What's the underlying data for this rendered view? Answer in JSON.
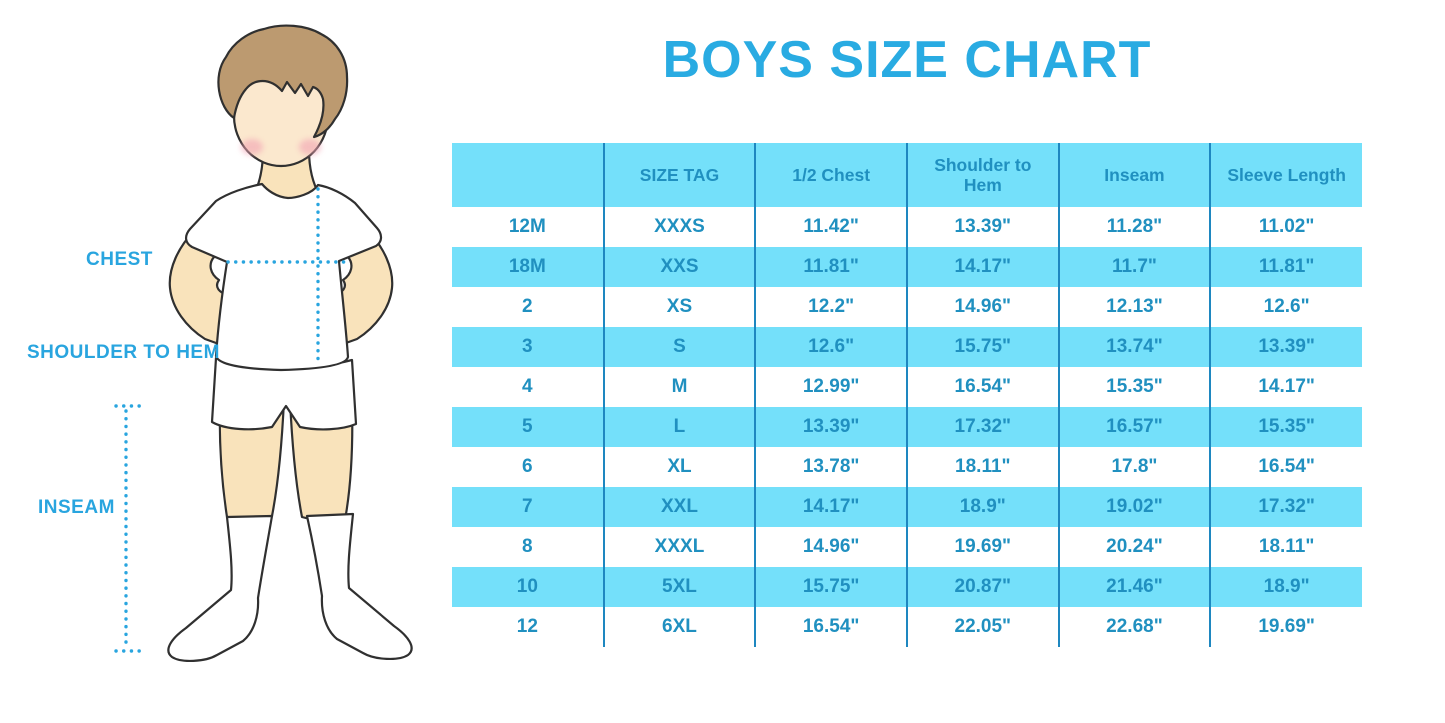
{
  "page": {
    "title": "BOYS SIZE CHART"
  },
  "figure": {
    "description": "cartoon boy in white t-shirt, shorts and knee socks with dotted measurement guides",
    "labels": {
      "chest": "CHEST",
      "shoulder_to_hem": "SHOULDER TO HEM",
      "inseam": "INSEAM"
    }
  },
  "chart_data": {
    "type": "table",
    "title": "BOYS SIZE CHART",
    "columns": [
      "",
      "SIZE TAG",
      "1/2 Chest",
      "Shoulder to Hem",
      "Inseam",
      "Sleeve Length"
    ],
    "rows": [
      [
        "12M",
        "XXXS",
        "11.42\"",
        "13.39\"",
        "11.28\"",
        "11.02\""
      ],
      [
        "18M",
        "XXS",
        "11.81\"",
        "14.17\"",
        "11.7\"",
        "11.81\""
      ],
      [
        "2",
        "XS",
        "12.2\"",
        "14.96\"",
        "12.13\"",
        "12.6\""
      ],
      [
        "3",
        "S",
        "12.6\"",
        "15.75\"",
        "13.74\"",
        "13.39\""
      ],
      [
        "4",
        "M",
        "12.99\"",
        "16.54\"",
        "15.35\"",
        "14.17\""
      ],
      [
        "5",
        "L",
        "13.39\"",
        "17.32\"",
        "16.57\"",
        "15.35\""
      ],
      [
        "6",
        "XL",
        "13.78\"",
        "18.11\"",
        "17.8\"",
        "16.54\""
      ],
      [
        "7",
        "XXL",
        "14.17\"",
        "18.9\"",
        "19.02\"",
        "17.32\""
      ],
      [
        "8",
        "XXXL",
        "14.96\"",
        "19.69\"",
        "20.24\"",
        "18.11\""
      ],
      [
        "10",
        "5XL",
        "15.75\"",
        "20.87\"",
        "21.46\"",
        "18.9\""
      ],
      [
        "12",
        "6XL",
        "16.54\"",
        "22.05\"",
        "22.68\"",
        "19.69\""
      ]
    ],
    "layout": {
      "row_striping": "alternating white and cyan starting white",
      "grid": "vertical column dividers only, no outer border"
    }
  },
  "colors": {
    "accent_blue": "#29ABE2",
    "band_cyan": "#74E0FA",
    "divider_blue": "#1E87C0",
    "cell_text_blue": "#2090C0",
    "label_blue": "#29A5DF",
    "skin": "#F9E3BB",
    "face_skin": "#FBE8CE",
    "hair_brown": "#BC9A70",
    "cheek_pink": "#F2A3B3",
    "outline": "#303030"
  }
}
